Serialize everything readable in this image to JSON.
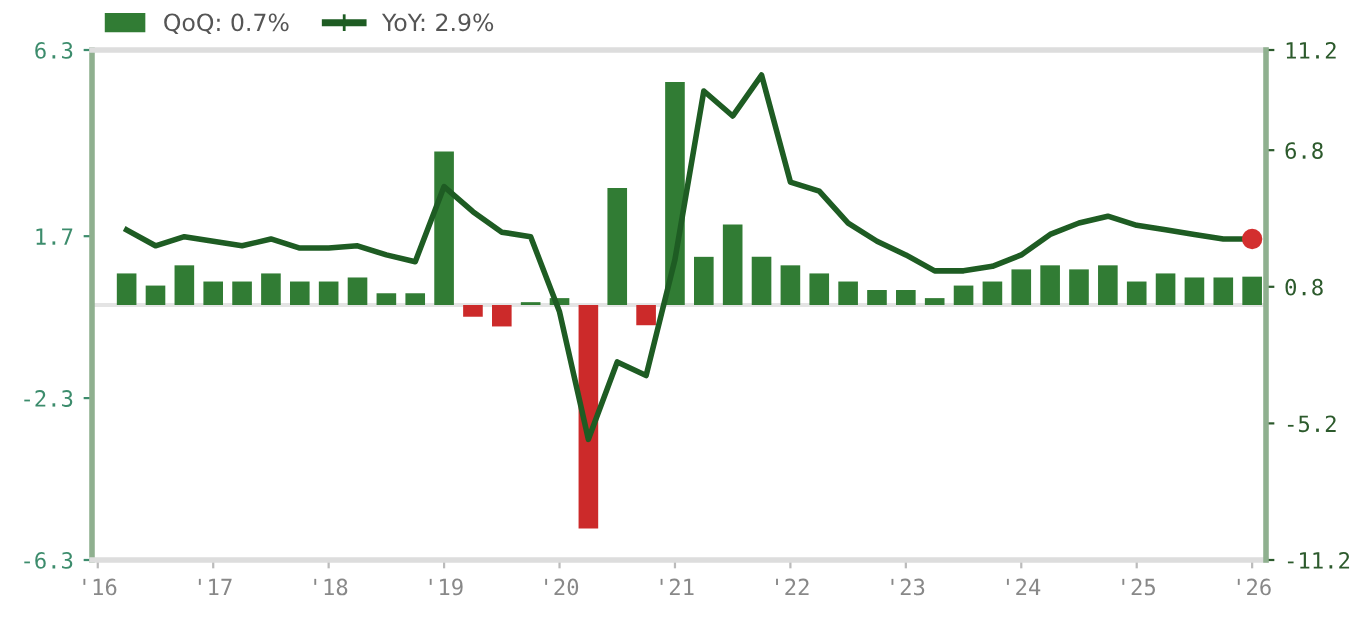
{
  "chart_data": {
    "type": "bar",
    "x": [
      2016.25,
      2016.5,
      2016.75,
      2017.0,
      2017.25,
      2017.5,
      2017.75,
      2018.0,
      2018.25,
      2018.5,
      2018.75,
      2019.0,
      2019.25,
      2019.5,
      2019.75,
      2020.0,
      2020.25,
      2020.5,
      2020.75,
      2021.0,
      2021.25,
      2021.5,
      2021.75,
      2022.0,
      2022.25,
      2022.5,
      2022.75,
      2023.0,
      2023.25,
      2023.5,
      2023.75,
      2024.0,
      2024.25,
      2024.5,
      2024.75,
      2025.0,
      2025.25,
      2025.5,
      2025.75,
      2026.0
    ],
    "series": [
      {
        "name": "QoQ: 0.7%",
        "color": "#317c34",
        "colors": [
          "#317c34",
          "#317c34",
          "#317c34",
          "#317c34",
          "#317c34",
          "#317c34",
          "#317c34",
          "#317c34",
          "#317c34",
          "#317c34",
          "#317c34",
          "#317c34",
          "#cc2a2a",
          "#cc2a2a",
          "#317c34",
          "#317c34",
          "#cc2a2a",
          "#317c34",
          "#cc2a2a",
          "#317c34",
          "#317c34",
          "#317c34",
          "#317c34",
          "#317c34",
          "#317c34",
          "#317c34",
          "#317c34",
          "#317c34",
          "#317c34",
          "#317c34",
          "#317c34",
          "#317c34",
          "#317c34",
          "#317c34",
          "#317c34",
          "#317c34",
          "#317c34",
          "#317c34",
          "#317c34",
          "#317c34"
        ],
        "values": [
          0.78,
          0.48,
          0.98,
          0.58,
          0.58,
          0.78,
          0.58,
          0.58,
          0.68,
          0.29,
          0.29,
          3.79,
          -0.29,
          -0.53,
          0.07,
          0.17,
          -5.52,
          2.89,
          -0.5,
          5.51,
          1.19,
          1.99,
          1.19,
          0.98,
          0.78,
          0.58,
          0.37,
          0.37,
          0.17,
          0.48,
          0.58,
          0.88,
          0.98,
          0.88,
          0.98,
          0.58,
          0.78,
          0.68,
          0.68,
          0.7
        ]
      },
      {
        "name": "YoY: 2.9%",
        "type": "line",
        "axis": "y2",
        "color": "#1e5c23",
        "values": [
          3.3,
          2.6,
          3.0,
          2.8,
          2.6,
          2.9,
          2.5,
          2.5,
          2.6,
          2.2,
          1.9,
          5.2,
          4.1,
          3.2,
          3.0,
          -0.3,
          -5.9,
          -2.5,
          -3.1,
          2.0,
          9.4,
          8.3,
          10.1,
          5.4,
          5.0,
          3.6,
          2.8,
          2.2,
          1.5,
          1.5,
          1.7,
          2.2,
          3.1,
          3.6,
          3.9,
          3.5,
          3.3,
          3.1,
          2.9,
          2.9
        ]
      },
      {
        "type": "scatter",
        "axis": "y2",
        "color": "#d32f2f",
        "x": [
          2026.0
        ],
        "values": [
          2.9
        ]
      }
    ],
    "xlim": [
      2015.95,
      2026.12
    ],
    "xticks": [
      {
        "value": 2016,
        "label": "'16"
      },
      {
        "value": 2017,
        "label": "'17"
      },
      {
        "value": 2018,
        "label": "'18"
      },
      {
        "value": 2019,
        "label": "'19"
      },
      {
        "value": 2020,
        "label": "'20"
      },
      {
        "value": 2021,
        "label": "'21"
      },
      {
        "value": 2022,
        "label": "'22"
      },
      {
        "value": 2023,
        "label": "'23"
      },
      {
        "value": 2024,
        "label": "'24"
      },
      {
        "value": 2025,
        "label": "'25"
      },
      {
        "value": 2026,
        "label": "'26"
      }
    ],
    "ylim": [
      -6.3,
      6.3
    ],
    "yticks": [
      -6.3,
      -2.3,
      1.7,
      6.3
    ],
    "y2lim": [
      -11.2,
      11.2
    ],
    "y2ticks": [
      -11.2,
      -5.2,
      0.8,
      6.8,
      11.2
    ],
    "legend": "top left",
    "grid": false,
    "line_style": "solid"
  }
}
